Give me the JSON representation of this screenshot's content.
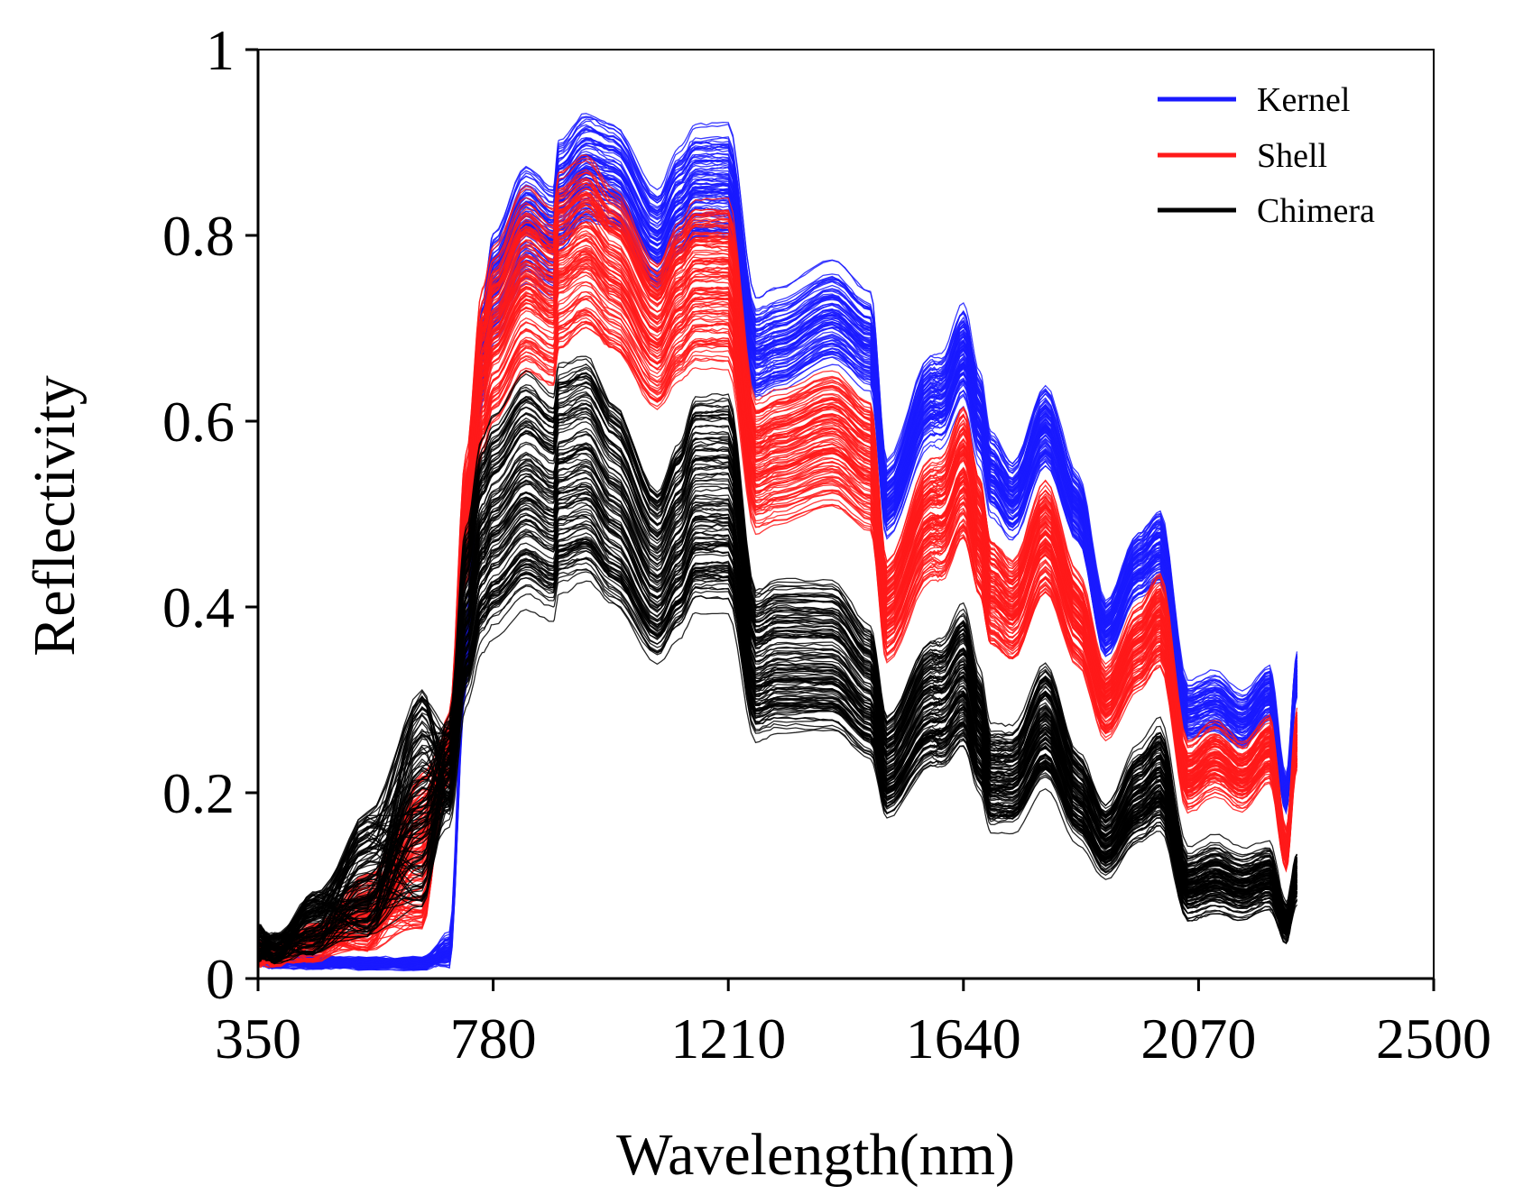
{
  "chart_data": {
    "type": "line",
    "title": "",
    "xlabel": "Wavelength(nm)",
    "ylabel": "Reflectivity",
    "xlim": [
      350,
      2500
    ],
    "ylim": [
      0,
      1
    ],
    "xticks": [
      350,
      780,
      1210,
      1640,
      2070,
      2500
    ],
    "xtick_labels": [
      "350",
      "780",
      "1210",
      "1640",
      "2070",
      "2500"
    ],
    "yticks": [
      0,
      0.2,
      0.4,
      0.6,
      0.8,
      1
    ],
    "ytick_labels": [
      "0",
      "0.2",
      "0.4",
      "0.6",
      "0.8",
      "1"
    ],
    "grid": false,
    "legend_position": "top-right",
    "x": [
      350,
      380,
      450,
      550,
      650,
      700,
      730,
      760,
      780,
      840,
      890,
      900,
      950,
      1000,
      1080,
      1120,
      1150,
      1210,
      1260,
      1300,
      1400,
      1470,
      1500,
      1580,
      1600,
      1640,
      1670,
      1690,
      1730,
      1790,
      1850,
      1900,
      1960,
      2000,
      2050,
      2100,
      2150,
      2200,
      2230,
      2250
    ],
    "series": [
      {
        "name": "Kernel",
        "color": "#1a1aff",
        "count": 90,
        "values": [
          0.02,
          0.015,
          0.012,
          0.01,
          0.01,
          0.03,
          0.35,
          0.68,
          0.75,
          0.82,
          0.8,
          0.85,
          0.88,
          0.87,
          0.8,
          0.84,
          0.86,
          0.86,
          0.68,
          0.69,
          0.72,
          0.69,
          0.52,
          0.63,
          0.63,
          0.68,
          0.61,
          0.55,
          0.52,
          0.6,
          0.51,
          0.38,
          0.45,
          0.47,
          0.29,
          0.3,
          0.28,
          0.31,
          0.2,
          0.33
        ],
        "spread": 0.05
      },
      {
        "name": "Shell",
        "color": "#ff1a1a",
        "count": 110,
        "values": [
          0.02,
          0.018,
          0.03,
          0.06,
          0.12,
          0.25,
          0.5,
          0.66,
          0.7,
          0.76,
          0.74,
          0.78,
          0.8,
          0.77,
          0.7,
          0.74,
          0.76,
          0.76,
          0.56,
          0.57,
          0.59,
          0.56,
          0.4,
          0.5,
          0.5,
          0.55,
          0.48,
          0.42,
          0.4,
          0.48,
          0.39,
          0.3,
          0.36,
          0.39,
          0.22,
          0.24,
          0.22,
          0.25,
          0.14,
          0.26
        ],
        "spread": 0.08
      },
      {
        "name": "Chimera",
        "color": "#000000",
        "count": 120,
        "values": [
          0.03,
          0.025,
          0.05,
          0.1,
          0.17,
          0.23,
          0.4,
          0.48,
          0.5,
          0.54,
          0.52,
          0.55,
          0.56,
          0.52,
          0.44,
          0.48,
          0.52,
          0.52,
          0.34,
          0.35,
          0.35,
          0.31,
          0.23,
          0.3,
          0.3,
          0.33,
          0.27,
          0.22,
          0.22,
          0.28,
          0.2,
          0.15,
          0.2,
          0.22,
          0.1,
          0.11,
          0.1,
          0.11,
          0.06,
          0.11
        ],
        "spread": 0.11
      }
    ]
  }
}
